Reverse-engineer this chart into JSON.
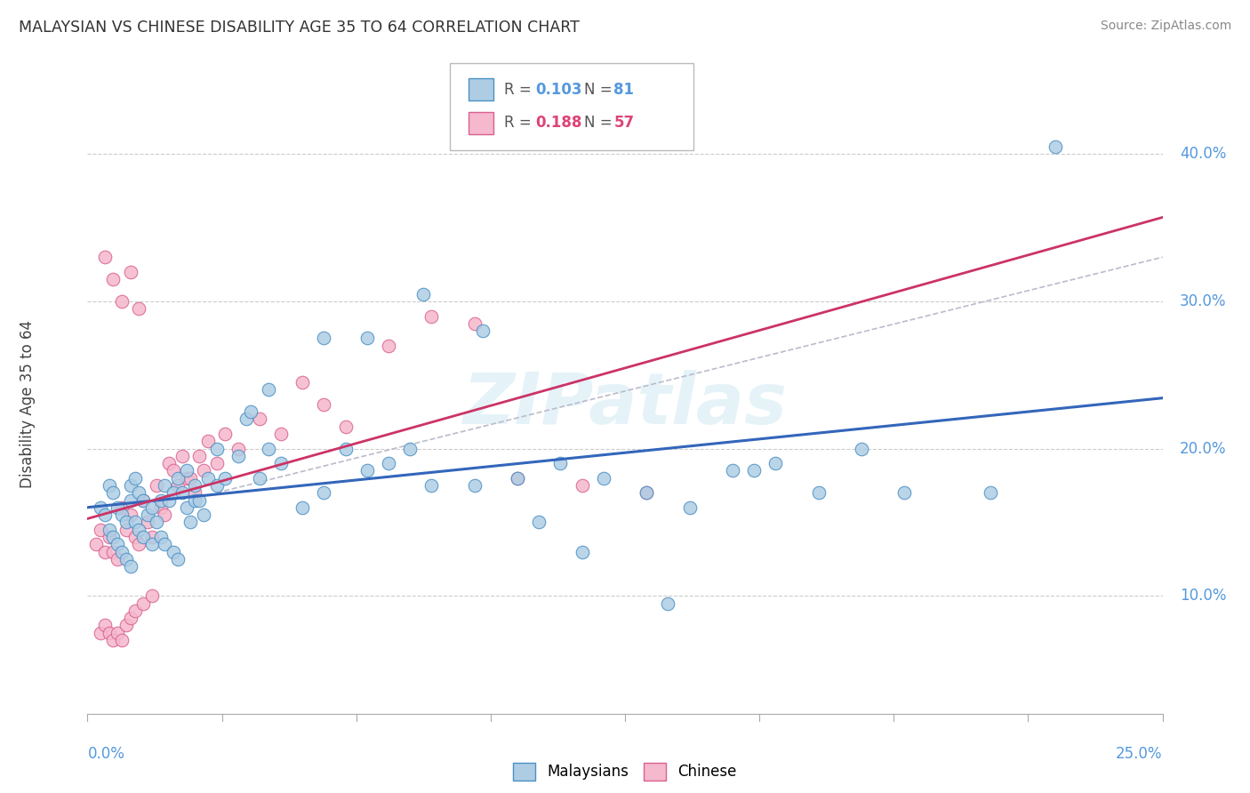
{
  "title": "MALAYSIAN VS CHINESE DISABILITY AGE 35 TO 64 CORRELATION CHART",
  "source": "Source: ZipAtlas.com",
  "ylabel": "Disability Age 35 to 64",
  "xmin": 0.0,
  "xmax": 25.0,
  "ymin": 2.0,
  "ymax": 44.0,
  "legend_r1": "0.103",
  "legend_n1": "81",
  "legend_r2": "0.188",
  "legend_n2": "57",
  "blue_fill": "#aecde4",
  "blue_edge": "#4a90c4",
  "pink_fill": "#f5b8cc",
  "pink_edge": "#d96090",
  "blue_line": "#3366bb",
  "pink_line": "#cc3366",
  "watermark": "ZIPatlas",
  "malaysian_x": [
    0.3,
    0.4,
    0.5,
    0.5,
    0.6,
    0.6,
    0.7,
    0.7,
    0.8,
    0.8,
    0.9,
    0.9,
    1.0,
    1.0,
    1.0,
    1.1,
    1.1,
    1.2,
    1.2,
    1.3,
    1.3,
    1.4,
    1.5,
    1.5,
    1.6,
    1.7,
    1.7,
    1.8,
    1.8,
    1.9,
    2.0,
    2.0,
    2.1,
    2.1,
    2.2,
    2.3,
    2.3,
    2.4,
    2.5,
    2.5,
    2.6,
    2.7,
    2.8,
    3.0,
    3.0,
    3.2,
    3.5,
    3.7,
    4.0,
    4.2,
    4.5,
    5.0,
    5.5,
    6.0,
    6.5,
    7.0,
    7.5,
    8.0,
    9.0,
    10.0,
    11.0,
    12.0,
    13.0,
    14.0,
    15.0,
    16.0,
    17.0,
    18.0,
    3.8,
    4.2,
    5.5,
    6.5,
    7.8,
    9.2,
    10.5,
    11.5,
    13.5,
    15.5,
    19.0,
    21.0,
    22.5
  ],
  "malaysian_y": [
    16.0,
    15.5,
    14.5,
    17.5,
    14.0,
    17.0,
    13.5,
    16.0,
    13.0,
    15.5,
    12.5,
    15.0,
    12.0,
    16.5,
    17.5,
    15.0,
    18.0,
    14.5,
    17.0,
    14.0,
    16.5,
    15.5,
    13.5,
    16.0,
    15.0,
    14.0,
    16.5,
    13.5,
    17.5,
    16.5,
    13.0,
    17.0,
    12.5,
    18.0,
    17.0,
    16.0,
    18.5,
    15.0,
    16.5,
    17.5,
    16.5,
    15.5,
    18.0,
    17.5,
    20.0,
    18.0,
    19.5,
    22.0,
    18.0,
    20.0,
    19.0,
    16.0,
    17.0,
    20.0,
    18.5,
    19.0,
    20.0,
    17.5,
    17.5,
    18.0,
    19.0,
    18.0,
    17.0,
    16.0,
    18.5,
    19.0,
    17.0,
    20.0,
    22.5,
    24.0,
    27.5,
    27.5,
    30.5,
    28.0,
    15.0,
    13.0,
    9.5,
    18.5,
    17.0,
    17.0,
    40.5
  ],
  "chinese_x": [
    0.2,
    0.3,
    0.3,
    0.4,
    0.4,
    0.5,
    0.5,
    0.6,
    0.6,
    0.7,
    0.7,
    0.8,
    0.8,
    0.9,
    0.9,
    1.0,
    1.0,
    1.1,
    1.1,
    1.2,
    1.3,
    1.3,
    1.4,
    1.5,
    1.5,
    1.6,
    1.7,
    1.8,
    1.9,
    2.0,
    2.1,
    2.2,
    2.3,
    2.4,
    2.5,
    2.6,
    2.7,
    2.8,
    3.0,
    3.2,
    3.5,
    4.0,
    4.5,
    5.0,
    5.5,
    6.0,
    7.0,
    8.0,
    9.0,
    10.0,
    11.5,
    13.0,
    0.4,
    0.6,
    0.8,
    1.0,
    1.2
  ],
  "chinese_y": [
    13.5,
    14.5,
    7.5,
    13.0,
    8.0,
    14.0,
    7.5,
    13.0,
    7.0,
    12.5,
    7.5,
    16.0,
    7.0,
    14.5,
    8.0,
    15.5,
    8.5,
    14.0,
    9.0,
    13.5,
    16.5,
    9.5,
    15.0,
    14.0,
    10.0,
    17.5,
    16.0,
    15.5,
    19.0,
    18.5,
    17.5,
    19.5,
    18.0,
    18.0,
    17.0,
    19.5,
    18.5,
    20.5,
    19.0,
    21.0,
    20.0,
    22.0,
    21.0,
    24.5,
    23.0,
    21.5,
    27.0,
    29.0,
    28.5,
    18.0,
    17.5,
    17.0,
    33.0,
    31.5,
    30.0,
    32.0,
    29.5
  ]
}
